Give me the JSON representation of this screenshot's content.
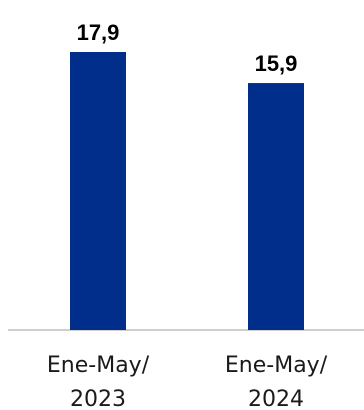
{
  "chart_data": {
    "type": "bar",
    "categories": [
      [
        "Ene-May/",
        "2023"
      ],
      [
        "Ene-May/",
        "2024"
      ]
    ],
    "values": [
      17.9,
      15.9
    ],
    "value_labels": [
      "17,9",
      "15,9"
    ],
    "title": "",
    "xlabel": "",
    "ylabel": "",
    "ylim": [
      0,
      20
    ],
    "grid": false,
    "legend": "none",
    "colors": {
      "bar": "#002E8A",
      "axis": "#BFBFBF"
    }
  }
}
